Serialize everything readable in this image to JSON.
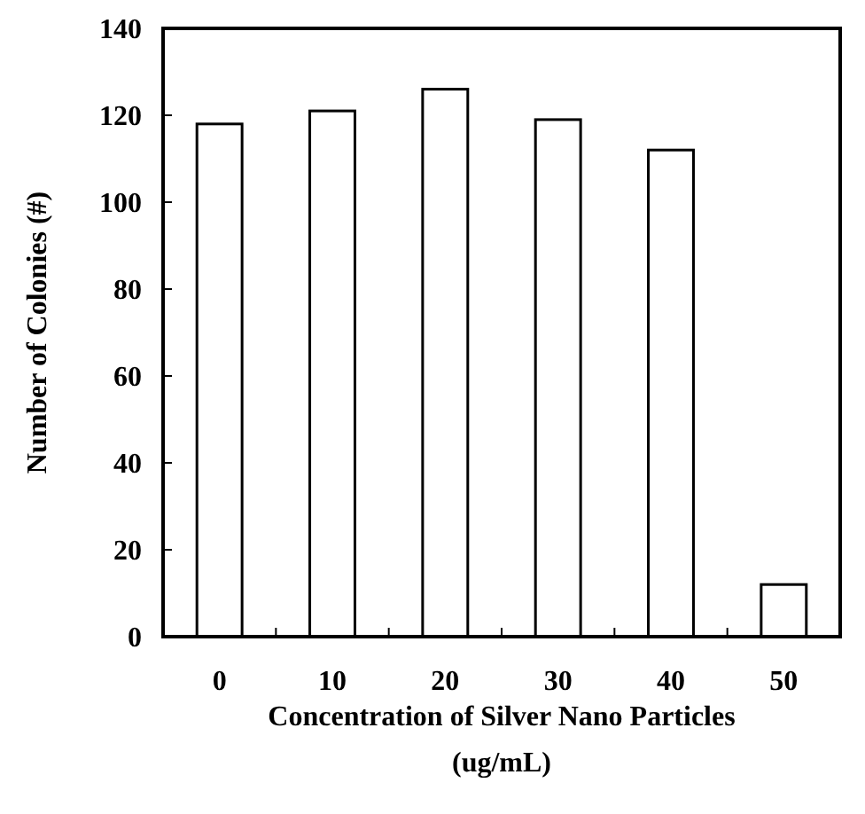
{
  "chart_data": {
    "type": "bar",
    "xlabel": "Concentration of Silver Nano Particles\n(ug/mL)",
    "ylabel": "Number of Colonies (#)",
    "categories": [
      "0",
      "10",
      "20",
      "30",
      "40",
      "50"
    ],
    "values": [
      118,
      121,
      126,
      119,
      112,
      12
    ],
    "color": "#ffffff",
    "ylim": [
      0,
      140
    ],
    "yticks": [
      0,
      20,
      40,
      60,
      80,
      100,
      120,
      140
    ],
    "grid": false
  }
}
